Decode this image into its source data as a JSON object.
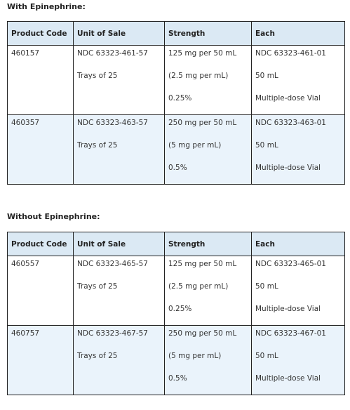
{
  "sections": [
    {
      "title": "With Epinephrine:",
      "headers": [
        "Product Code",
        "Unit of Sale",
        "Strength",
        "Each"
      ],
      "rows": [
        {
          "product_code": "460157",
          "unit_of_sale": [
            "NDC 63323-461-57",
            "Trays of 25"
          ],
          "strength": [
            "125 mg per 50 mL",
            "(2.5 mg per mL)",
            "0.25%"
          ],
          "each": [
            "NDC 63323-461-01",
            "50 mL",
            "Multiple-dose Vial"
          ]
        },
        {
          "product_code": "460357",
          "unit_of_sale": [
            "NDC 63323-463-57",
            "Trays of 25"
          ],
          "strength": [
            "250 mg per 50 mL",
            "(5 mg per mL)",
            "0.5%"
          ],
          "each": [
            "NDC 63323-463-01",
            "50 mL",
            "Multiple-dose Vial"
          ]
        }
      ]
    },
    {
      "title": "Without Epinephrine:",
      "headers": [
        "Product Code",
        "Unit of Sale",
        "Strength",
        "Each"
      ],
      "rows": [
        {
          "product_code": "460557",
          "unit_of_sale": [
            "NDC 63323-465-57",
            "Trays of 25"
          ],
          "strength": [
            "125 mg per 50 mL",
            "(2.5 mg per mL)",
            "0.25%"
          ],
          "each": [
            "NDC 63323-465-01",
            "50 mL",
            "Multiple-dose Vial"
          ]
        },
        {
          "product_code": "460757",
          "unit_of_sale": [
            "NDC 63323-467-57",
            "Trays of 25"
          ],
          "strength": [
            "250 mg per 50 mL",
            "(5 mg per mL)",
            "0.5%"
          ],
          "each": [
            "NDC 63323-467-01",
            "50 mL",
            "Multiple-dose Vial"
          ]
        }
      ]
    }
  ]
}
